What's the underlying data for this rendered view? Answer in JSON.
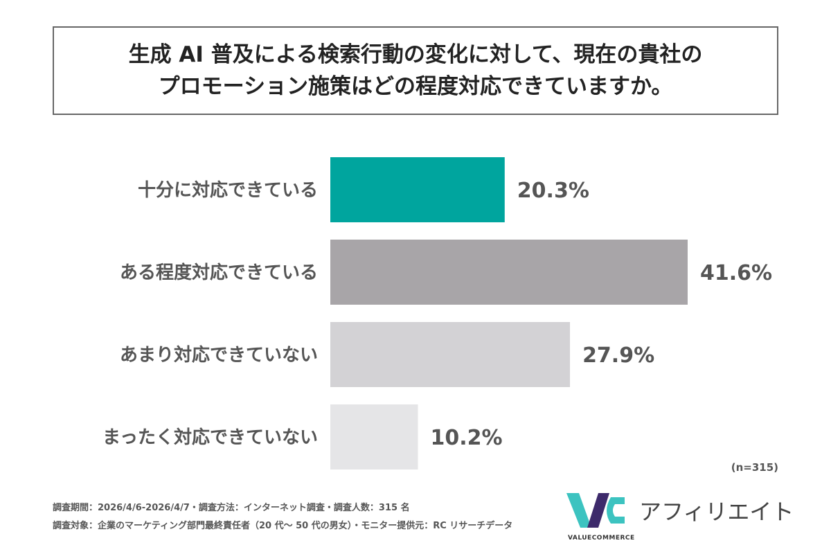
{
  "title": {
    "line1": "生成 AI 普及による検索行動の変化に対して、現在の貴社の",
    "line2": "プロモーション施策はどの程度対応できていますか。"
  },
  "chart_data": {
    "type": "bar",
    "orientation": "horizontal",
    "categories": [
      "十分に対応できている",
      "ある程度対応できている",
      "あまり対応できていない",
      "まったく対応できていない"
    ],
    "values": [
      20.3,
      41.6,
      27.9,
      10.2
    ],
    "value_labels": [
      "20.3%",
      "41.6%",
      "27.9%",
      "10.2%"
    ],
    "colors": [
      "#00a59e",
      "#a8a5a8",
      "#d3d2d5",
      "#e5e5e7"
    ],
    "unit": "%",
    "xlim": [
      0,
      45
    ],
    "grid": false
  },
  "sample_note": "(n=315)",
  "footnotes": {
    "line1": "調査期間：2026/4/6-2026/4/7・調査方法：インターネット調査・調査人数：315 名",
    "line2": "調査対象：企業のマーケティング部門最終責任者（20 代～ 50 代の男女）・モニター提供元：RC リサーチデータ"
  },
  "logo": {
    "name": "アフィリエイト",
    "sub": "VALUECOMMERCE"
  }
}
